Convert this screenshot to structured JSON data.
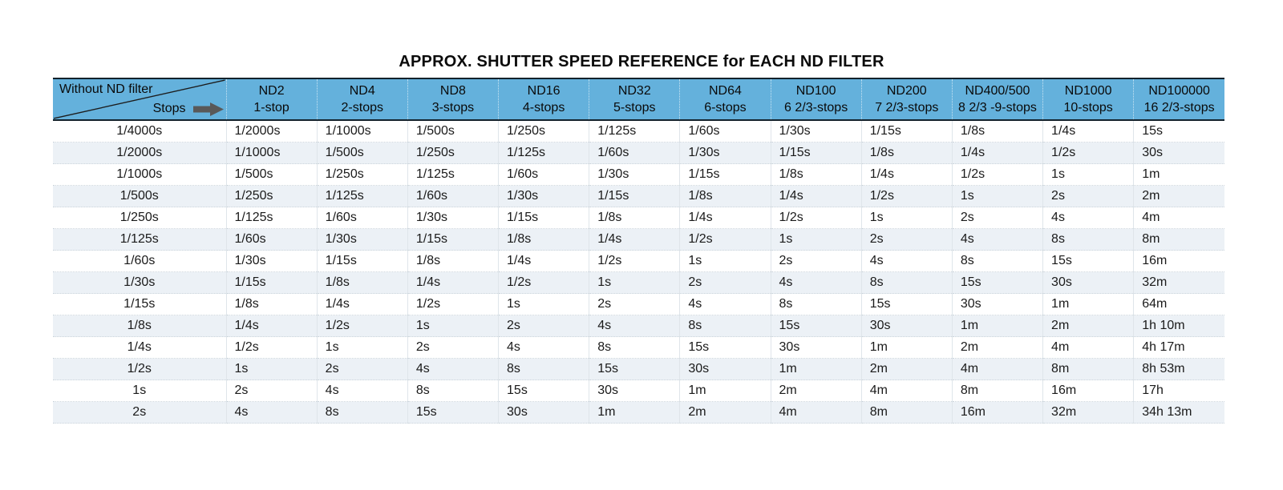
{
  "title": "APPROX. SHUTTER SPEED REFERENCE for EACH ND FILTER",
  "colors": {
    "header_bg": "#64b1dc",
    "header_border": "#13222c",
    "row_alt_bg": "#ecf1f6",
    "grid_line": "#ccd5dc",
    "grid_line_vertical": "#dfe5ea",
    "arrow": "#595959",
    "diagonal_line": "#1c1c1c"
  },
  "chart_data": {
    "type": "table",
    "title": "APPROX. SHUTTER SPEED REFERENCE for EACH ND FILTER",
    "corner": {
      "top_label": "Without ND filter",
      "bottom_label": "Stops",
      "arrow_icon": "right-arrow"
    },
    "columns": [
      {
        "filter": "ND2",
        "stops": "1-stop"
      },
      {
        "filter": "ND4",
        "stops": "2-stops"
      },
      {
        "filter": "ND8",
        "stops": "3-stops"
      },
      {
        "filter": "ND16",
        "stops": "4-stops"
      },
      {
        "filter": "ND32",
        "stops": "5-stops"
      },
      {
        "filter": "ND64",
        "stops": "6-stops"
      },
      {
        "filter": "ND100",
        "stops": "6 2/3-stops"
      },
      {
        "filter": "ND200",
        "stops": "7 2/3-stops"
      },
      {
        "filter": "ND400/500",
        "stops": "8 2/3 -9-stops"
      },
      {
        "filter": "ND1000",
        "stops": "10-stops"
      },
      {
        "filter": "ND100000",
        "stops": "16 2/3-stops"
      }
    ],
    "rows": [
      [
        "1/4000s",
        "1/2000s",
        "1/1000s",
        "1/500s",
        "1/250s",
        "1/125s",
        "1/60s",
        "1/30s",
        "1/15s",
        "1/8s",
        "1/4s",
        "15s"
      ],
      [
        "1/2000s",
        "1/1000s",
        "1/500s",
        "1/250s",
        "1/125s",
        "1/60s",
        "1/30s",
        "1/15s",
        "1/8s",
        "1/4s",
        "1/2s",
        "30s"
      ],
      [
        "1/1000s",
        "1/500s",
        "1/250s",
        "1/125s",
        "1/60s",
        "1/30s",
        "1/15s",
        "1/8s",
        "1/4s",
        "1/2s",
        "1s",
        "1m"
      ],
      [
        "1/500s",
        "1/250s",
        "1/125s",
        "1/60s",
        "1/30s",
        "1/15s",
        "1/8s",
        "1/4s",
        "1/2s",
        "1s",
        "2s",
        "2m"
      ],
      [
        "1/250s",
        "1/125s",
        "1/60s",
        "1/30s",
        "1/15s",
        "1/8s",
        "1/4s",
        "1/2s",
        "1s",
        "2s",
        "4s",
        "4m"
      ],
      [
        "1/125s",
        "1/60s",
        "1/30s",
        "1/15s",
        "1/8s",
        "1/4s",
        "1/2s",
        "1s",
        "2s",
        "4s",
        "8s",
        "8m"
      ],
      [
        "1/60s",
        "1/30s",
        "1/15s",
        "1/8s",
        "1/4s",
        "1/2s",
        "1s",
        "2s",
        "4s",
        "8s",
        "15s",
        "16m"
      ],
      [
        "1/30s",
        "1/15s",
        "1/8s",
        "1/4s",
        "1/2s",
        "1s",
        "2s",
        "4s",
        "8s",
        "15s",
        "30s",
        "32m"
      ],
      [
        "1/15s",
        "1/8s",
        "1/4s",
        "1/2s",
        "1s",
        "2s",
        "4s",
        "8s",
        "15s",
        "30s",
        "1m",
        "64m"
      ],
      [
        "1/8s",
        "1/4s",
        "1/2s",
        "1s",
        "2s",
        "4s",
        "8s",
        "15s",
        "30s",
        "1m",
        "2m",
        "1h 10m"
      ],
      [
        "1/4s",
        "1/2s",
        "1s",
        "2s",
        "4s",
        "8s",
        "15s",
        "30s",
        "1m",
        "2m",
        "4m",
        "4h 17m"
      ],
      [
        "1/2s",
        "1s",
        "2s",
        "4s",
        "8s",
        "15s",
        "30s",
        "1m",
        "2m",
        "4m",
        "8m",
        "8h 53m"
      ],
      [
        "1s",
        "2s",
        "4s",
        "8s",
        "15s",
        "30s",
        "1m",
        "2m",
        "4m",
        "8m",
        "16m",
        "17h"
      ],
      [
        "2s",
        "4s",
        "8s",
        "15s",
        "30s",
        "1m",
        "2m",
        "4m",
        "8m",
        "16m",
        "32m",
        "34h 13m"
      ]
    ]
  }
}
